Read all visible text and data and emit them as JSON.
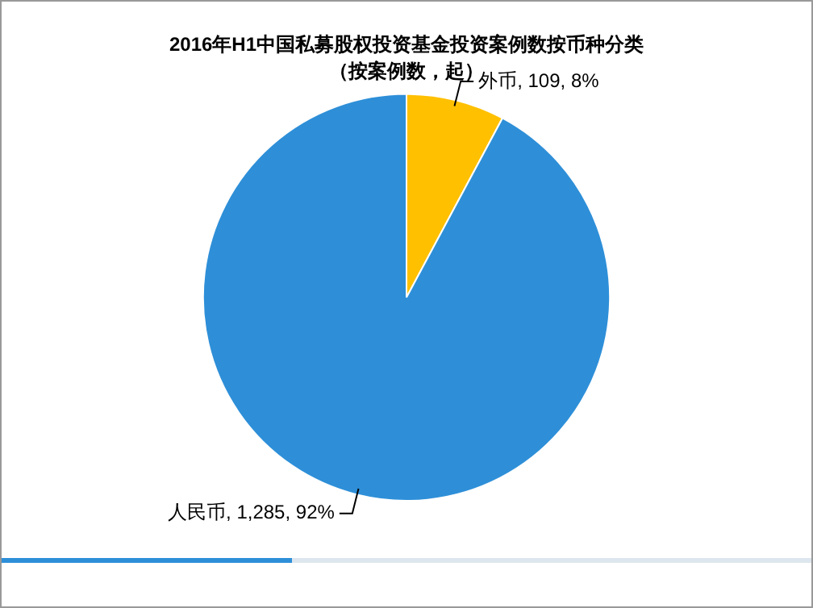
{
  "chart_data": {
    "type": "pie",
    "title": "2016年H1中国私募股权投资基金投资案例数按币种分类",
    "subtitle": "（按案例数，起）",
    "categories": [
      "外币",
      "人民币"
    ],
    "values": [
      109,
      1285
    ],
    "colors": [
      "#ffc000",
      "#2e8fd8"
    ],
    "value_labels": [
      "109, 8%",
      "1,285, 92%"
    ],
    "legend": false
  }
}
